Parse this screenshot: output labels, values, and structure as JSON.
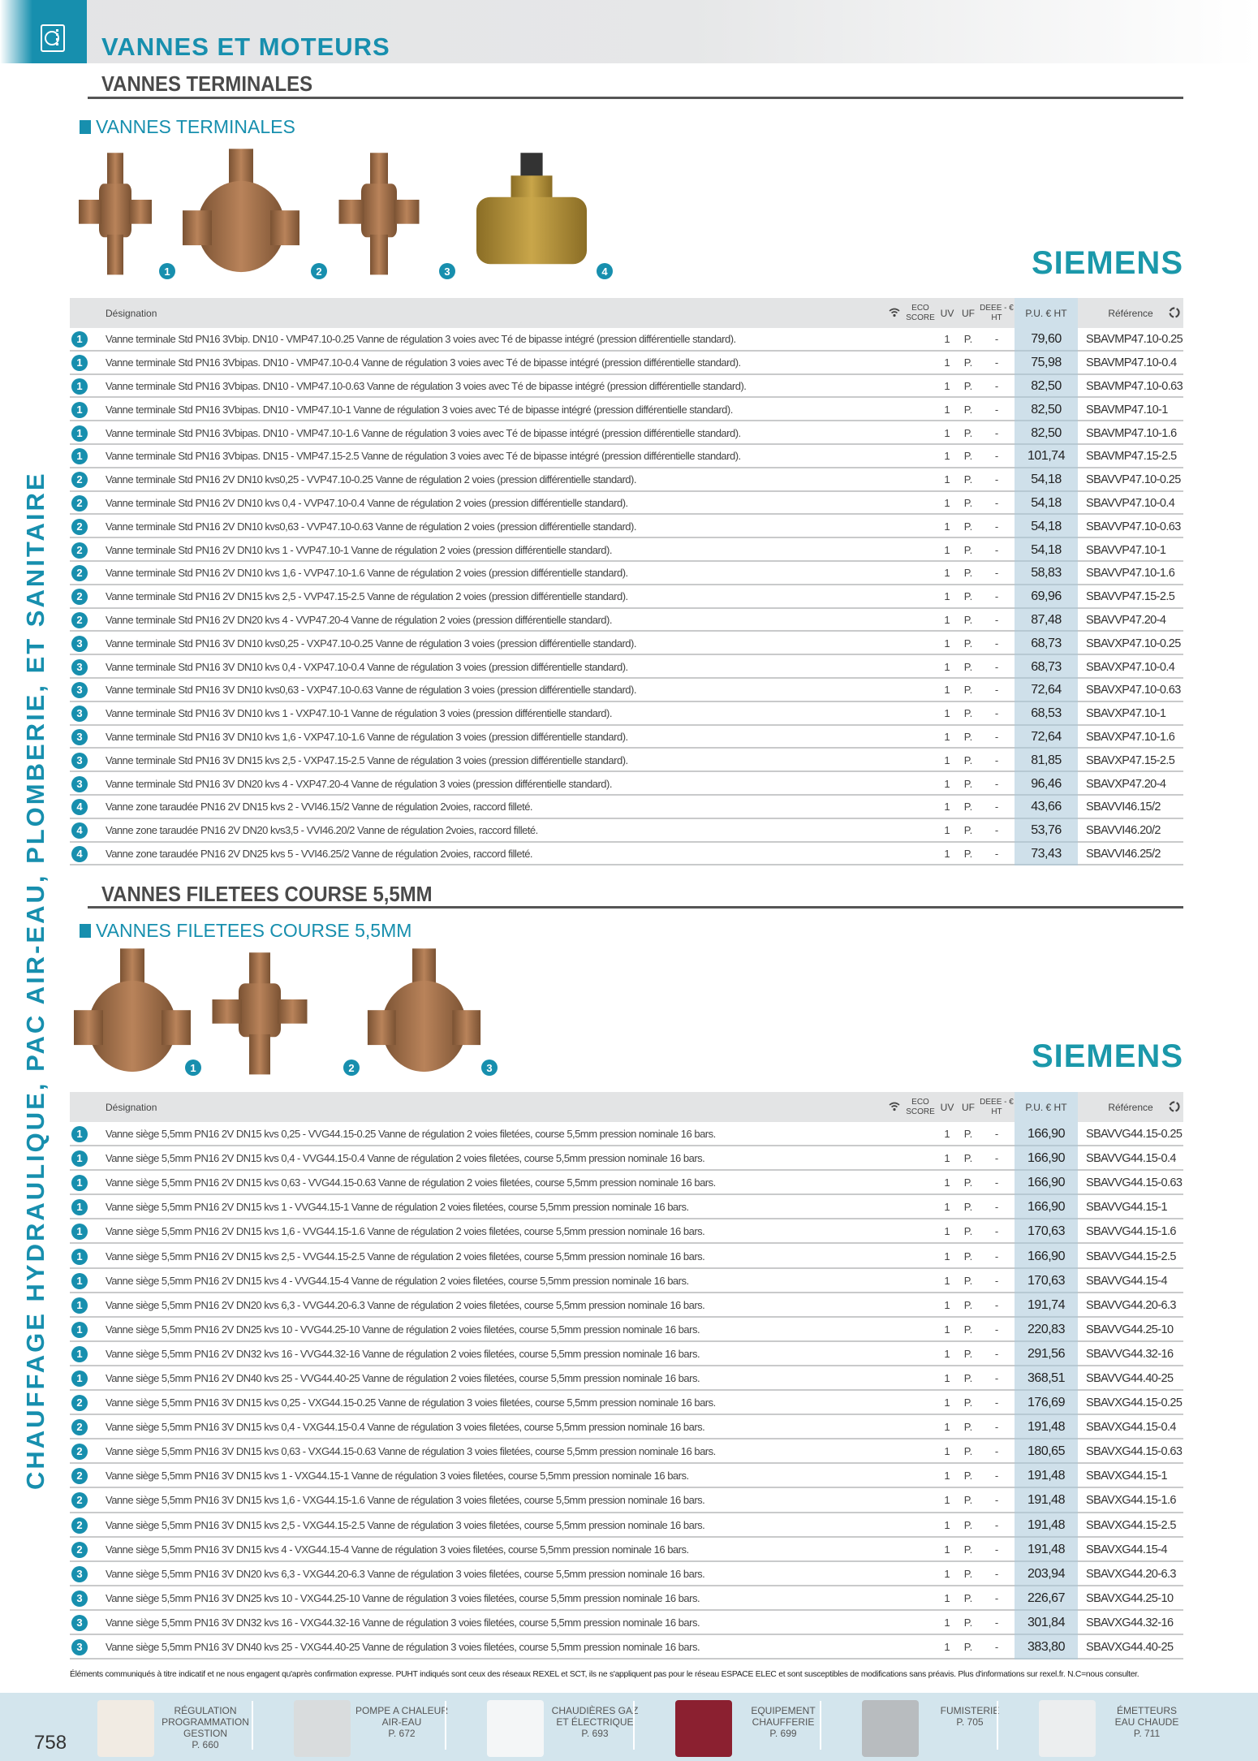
{
  "header": {
    "title": "VANNES ET MOTEURS",
    "icon": "heat-pump-icon"
  },
  "sidebar": {
    "text": "CHAUFFAGE HYDRAULIQUE, PAC AIR-EAU, PLOMBERIE, ET SANITAIRE"
  },
  "brand": "SIEMENS",
  "colors": {
    "accent": "#178fae",
    "price_column": "#cfe0ea",
    "footer_band": "#d3e5ed"
  },
  "columns": {
    "designation": "Désignation",
    "eco_score": "ECO SCORE",
    "uv": "UV",
    "uf": "UF",
    "deee": "DEEE - € HT",
    "pu": "P.U. € HT",
    "reference": "Référence",
    "wifi_icon": "wifi-icon",
    "recycle_icon": "recycle-icon"
  },
  "sections": [
    {
      "title": "VANNES TERMINALES",
      "label": "VANNES TERMINALES",
      "product_badges": [
        "1",
        "2",
        "3",
        "4"
      ],
      "rows": [
        [
          "1",
          "Vanne terminale Std PN16 3Vbip. DN10 - VMP47.10-0.25 Vanne de régulation 3 voies avec Té de bipasse intégré (pression différentielle standard).",
          "1",
          "P.",
          "-",
          "79,60",
          "SBAVMP47.10-0.25"
        ],
        [
          "1",
          "Vanne terminale Std PN16 3Vbipas. DN10 - VMP47.10-0.4 Vanne de régulation 3 voies avec Té de bipasse intégré (pression différentielle standard).",
          "1",
          "P.",
          "-",
          "75,98",
          "SBAVMP47.10-0.4"
        ],
        [
          "1",
          "Vanne terminale Std PN16 3Vbipas. DN10 - VMP47.10-0.63 Vanne de régulation 3 voies avec Té de bipasse intégré (pression différentielle standard).",
          "1",
          "P.",
          "-",
          "82,50",
          "SBAVMP47.10-0.63"
        ],
        [
          "1",
          "Vanne terminale Std PN16 3Vbipas. DN10 - VMP47.10-1 Vanne de régulation 3 voies avec Té de bipasse intégré (pression différentielle standard).",
          "1",
          "P.",
          "-",
          "82,50",
          "SBAVMP47.10-1"
        ],
        [
          "1",
          "Vanne terminale Std PN16 3Vbipas. DN10 - VMP47.10-1.6 Vanne de régulation 3 voies avec Té de bipasse intégré (pression différentielle standard).",
          "1",
          "P.",
          "-",
          "82,50",
          "SBAVMP47.10-1.6"
        ],
        [
          "1",
          "Vanne terminale Std PN16 3Vbipas. DN15 - VMP47.15-2.5 Vanne de régulation 3 voies avec Té de bipasse intégré (pression différentielle standard).",
          "1",
          "P.",
          "-",
          "101,74",
          "SBAVMP47.15-2.5"
        ],
        [
          "2",
          "Vanne terminale Std PN16 2V DN10 kvs0,25 - VVP47.10-0.25 Vanne de régulation 2 voies (pression différentielle standard).",
          "1",
          "P.",
          "-",
          "54,18",
          "SBAVVP47.10-0.25"
        ],
        [
          "2",
          "Vanne terminale Std PN16 2V DN10 kvs 0,4 - VVP47.10-0.4 Vanne de régulation 2 voies (pression différentielle standard).",
          "1",
          "P.",
          "-",
          "54,18",
          "SBAVVP47.10-0.4"
        ],
        [
          "2",
          "Vanne terminale Std PN16 2V DN10 kvs0,63 - VVP47.10-0.63 Vanne de régulation 2 voies (pression différentielle standard).",
          "1",
          "P.",
          "-",
          "54,18",
          "SBAVVP47.10-0.63"
        ],
        [
          "2",
          "Vanne terminale Std PN16 2V DN10 kvs 1 - VVP47.10-1 Vanne de régulation 2 voies (pression différentielle standard).",
          "1",
          "P.",
          "-",
          "54,18",
          "SBAVVP47.10-1"
        ],
        [
          "2",
          "Vanne terminale Std PN16 2V DN10 kvs 1,6 - VVP47.10-1.6 Vanne de régulation 2 voies (pression différentielle standard).",
          "1",
          "P.",
          "-",
          "58,83",
          "SBAVVP47.10-1.6"
        ],
        [
          "2",
          "Vanne terminale Std PN16 2V DN15 kvs 2,5 - VVP47.15-2.5 Vanne de régulation 2 voies (pression différentielle standard).",
          "1",
          "P.",
          "-",
          "69,96",
          "SBAVVP47.15-2.5"
        ],
        [
          "2",
          "Vanne terminale Std PN16 2V DN20 kvs 4 - VVP47.20-4 Vanne de régulation 2 voies (pression différentielle standard).",
          "1",
          "P.",
          "-",
          "87,48",
          "SBAVVP47.20-4"
        ],
        [
          "3",
          "Vanne terminale Std PN16 3V DN10 kvs0,25 - VXP47.10-0.25 Vanne de régulation 3 voies (pression différentielle standard).",
          "1",
          "P.",
          "-",
          "68,73",
          "SBAVXP47.10-0.25"
        ],
        [
          "3",
          "Vanne terminale Std PN16 3V DN10 kvs 0,4 - VXP47.10-0.4 Vanne de régulation 3 voies (pression différentielle standard).",
          "1",
          "P.",
          "-",
          "68,73",
          "SBAVXP47.10-0.4"
        ],
        [
          "3",
          "Vanne terminale Std PN16 3V DN10 kvs0,63 - VXP47.10-0.63 Vanne de régulation 3 voies (pression différentielle standard).",
          "1",
          "P.",
          "-",
          "72,64",
          "SBAVXP47.10-0.63"
        ],
        [
          "3",
          "Vanne terminale Std PN16 3V DN10 kvs 1 - VXP47.10-1 Vanne de régulation 3 voies (pression différentielle standard).",
          "1",
          "P.",
          "-",
          "68,53",
          "SBAVXP47.10-1"
        ],
        [
          "3",
          "Vanne terminale Std PN16 3V DN10 kvs 1,6 - VXP47.10-1.6 Vanne de régulation 3 voies (pression différentielle standard).",
          "1",
          "P.",
          "-",
          "72,64",
          "SBAVXP47.10-1.6"
        ],
        [
          "3",
          "Vanne terminale Std PN16 3V DN15 kvs 2,5 - VXP47.15-2.5 Vanne de régulation 3 voies (pression différentielle standard).",
          "1",
          "P.",
          "-",
          "81,85",
          "SBAVXP47.15-2.5"
        ],
        [
          "3",
          "Vanne terminale Std PN16 3V DN20 kvs 4 - VXP47.20-4 Vanne de régulation 3 voies (pression différentielle standard).",
          "1",
          "P.",
          "-",
          "96,46",
          "SBAVXP47.20-4"
        ],
        [
          "4",
          "Vanne zone taraudée PN16 2V DN15 kvs 2 - VVI46.15/2 Vanne de régulation 2voies, raccord filleté.",
          "1",
          "P.",
          "-",
          "43,66",
          "SBAVVI46.15/2"
        ],
        [
          "4",
          "Vanne zone taraudée PN16 2V DN20 kvs3,5 - VVI46.20/2 Vanne de régulation 2voies, raccord filleté.",
          "1",
          "P.",
          "-",
          "53,76",
          "SBAVVI46.20/2"
        ],
        [
          "4",
          "Vanne zone taraudée PN16 2V DN25 kvs 5 - VVI46.25/2 Vanne de régulation 2voies, raccord filleté.",
          "1",
          "P.",
          "-",
          "73,43",
          "SBAVVI46.25/2"
        ]
      ]
    },
    {
      "title": "VANNES FILETEES COURSE 5,5MM",
      "label": "VANNES FILETEES COURSE 5,5MM",
      "product_badges": [
        "1",
        "2",
        "3"
      ],
      "rows": [
        [
          "1",
          "Vanne siège 5,5mm PN16 2V DN15 kvs 0,25 - VVG44.15-0.25 Vanne de régulation 2 voies filetées, course 5,5mm pression nominale 16 bars.",
          "1",
          "P.",
          "-",
          "166,90",
          "SBAVVG44.15-0.25"
        ],
        [
          "1",
          "Vanne siège 5,5mm PN16 2V DN15 kvs 0,4 - VVG44.15-0.4 Vanne de régulation 2 voies filetées, course 5,5mm pression nominale 16 bars.",
          "1",
          "P.",
          "-",
          "166,90",
          "SBAVVG44.15-0.4"
        ],
        [
          "1",
          "Vanne siège 5,5mm PN16 2V DN15 kvs 0,63 - VVG44.15-0.63 Vanne de régulation 2 voies filetées, course 5,5mm pression nominale 16 bars.",
          "1",
          "P.",
          "-",
          "166,90",
          "SBAVVG44.15-0.63"
        ],
        [
          "1",
          "Vanne siège 5,5mm PN16 2V DN15 kvs 1 - VVG44.15-1 Vanne de régulation 2 voies filetées, course 5,5mm pression nominale 16 bars.",
          "1",
          "P.",
          "-",
          "166,90",
          "SBAVVG44.15-1"
        ],
        [
          "1",
          "Vanne siège 5,5mm PN16 2V DN15 kvs 1,6 - VVG44.15-1.6 Vanne de régulation 2 voies filetées, course 5,5mm pression nominale 16 bars.",
          "1",
          "P.",
          "-",
          "170,63",
          "SBAVVG44.15-1.6"
        ],
        [
          "1",
          "Vanne siège 5,5mm PN16 2V DN15 kvs 2,5 - VVG44.15-2.5 Vanne de régulation 2 voies filetées, course 5,5mm pression nominale 16 bars.",
          "1",
          "P.",
          "-",
          "166,90",
          "SBAVVG44.15-2.5"
        ],
        [
          "1",
          "Vanne siège 5,5mm PN16 2V DN15 kvs 4 - VVG44.15-4 Vanne de régulation 2 voies filetées, course 5,5mm pression nominale 16 bars.",
          "1",
          "P.",
          "-",
          "170,63",
          "SBAVVG44.15-4"
        ],
        [
          "1",
          "Vanne siège 5,5mm PN16 2V DN20 kvs 6,3 - VVG44.20-6.3 Vanne de régulation 2 voies filetées, course 5,5mm pression nominale 16 bars.",
          "1",
          "P.",
          "-",
          "191,74",
          "SBAVVG44.20-6.3"
        ],
        [
          "1",
          "Vanne siège 5,5mm PN16 2V DN25 kvs 10 - VVG44.25-10 Vanne de régulation 2 voies filetées, course 5,5mm pression nominale 16 bars.",
          "1",
          "P.",
          "-",
          "220,83",
          "SBAVVG44.25-10"
        ],
        [
          "1",
          "Vanne siège 5,5mm PN16 2V DN32 kvs 16 - VVG44.32-16 Vanne de régulation 2 voies filetées, course 5,5mm pression nominale 16 bars.",
          "1",
          "P.",
          "-",
          "291,56",
          "SBAVVG44.32-16"
        ],
        [
          "1",
          "Vanne siège 5,5mm PN16 2V DN40 kvs 25 - VVG44.40-25 Vanne de régulation 2 voies filetées, course 5,5mm pression nominale 16 bars.",
          "1",
          "P.",
          "-",
          "368,51",
          "SBAVVG44.40-25"
        ],
        [
          "2",
          "Vanne siège 5,5mm PN16 3V DN15 kvs 0,25 - VXG44.15-0.25 Vanne de régulation 3 voies filetées, course 5,5mm pression nominale 16 bars.",
          "1",
          "P.",
          "-",
          "176,69",
          "SBAVXG44.15-0.25"
        ],
        [
          "2",
          "Vanne siège 5,5mm PN16 3V DN15 kvs 0,4 - VXG44.15-0.4 Vanne de régulation 3 voies filetées, course 5,5mm pression nominale 16 bars.",
          "1",
          "P.",
          "-",
          "191,48",
          "SBAVXG44.15-0.4"
        ],
        [
          "2",
          "Vanne siège 5,5mm PN16 3V DN15 kvs 0,63 - VXG44.15-0.63 Vanne de régulation 3 voies filetées, course 5,5mm pression nominale 16 bars.",
          "1",
          "P.",
          "-",
          "180,65",
          "SBAVXG44.15-0.63"
        ],
        [
          "2",
          "Vanne siège 5,5mm PN16 3V DN15 kvs 1 - VXG44.15-1 Vanne de régulation 3 voies filetées, course 5,5mm pression nominale 16 bars.",
          "1",
          "P.",
          "-",
          "191,48",
          "SBAVXG44.15-1"
        ],
        [
          "2",
          "Vanne siège 5,5mm PN16 3V DN15 kvs 1,6 - VXG44.15-1.6 Vanne de régulation 3 voies filetées, course 5,5mm pression nominale 16 bars.",
          "1",
          "P.",
          "-",
          "191,48",
          "SBAVXG44.15-1.6"
        ],
        [
          "2",
          "Vanne siège 5,5mm PN16 3V DN15 kvs 2,5 - VXG44.15-2.5 Vanne de régulation 3 voies filetées, course 5,5mm pression nominale 16 bars.",
          "1",
          "P.",
          "-",
          "191,48",
          "SBAVXG44.15-2.5"
        ],
        [
          "2",
          "Vanne siège 5,5mm PN16 3V DN15 kvs 4 - VXG44.15-4 Vanne de régulation 3 voies filetées, course 5,5mm pression nominale 16 bars.",
          "1",
          "P.",
          "-",
          "191,48",
          "SBAVXG44.15-4"
        ],
        [
          "3",
          "Vanne siège 5,5mm PN16 3V DN20 kvs 6,3 - VXG44.20-6.3 Vanne de régulation 3 voies filetées, course 5,5mm pression nominale 16 bars.",
          "1",
          "P.",
          "-",
          "203,94",
          "SBAVXG44.20-6.3"
        ],
        [
          "3",
          "Vanne siège 5,5mm PN16 3V DN25 kvs 10 - VXG44.25-10 Vanne de régulation 3 voies filetées, course 5,5mm pression nominale 16 bars.",
          "1",
          "P.",
          "-",
          "226,67",
          "SBAVXG44.25-10"
        ],
        [
          "3",
          "Vanne siège 5,5mm PN16 3V DN32 kvs 16 - VXG44.32-16 Vanne de régulation 3 voies filetées, course 5,5mm pression nominale 16 bars.",
          "1",
          "P.",
          "-",
          "301,84",
          "SBAVXG44.32-16"
        ],
        [
          "3",
          "Vanne siège 5,5mm PN16 3V DN40 kvs 25 - VXG44.40-25 Vanne de régulation 3 voies filetées, course 5,5mm pression nominale 16 bars.",
          "1",
          "P.",
          "-",
          "383,80",
          "SBAVXG44.40-25"
        ]
      ]
    }
  ],
  "note": "Éléments communiqués à titre indicatif et ne nous engagent qu'après confirmation expresse. PUHT indiqués sont ceux des réseaux REXEL et SCT, ils ne s'appliquent pas pour le réseau ESPACE ELEC et sont susceptibles de modifications sans préavis. Plus d'informations sur rexel.fr. N.C=nous consulter.",
  "footer": {
    "page_number": "758",
    "items": [
      {
        "label": [
          "RÉGULATION",
          "PROGRAMMATION",
          "GESTION"
        ],
        "page": "P. 660"
      },
      {
        "label": [
          "POMPE A CHALEUR",
          "AIR-EAU"
        ],
        "page": "P. 672"
      },
      {
        "label": [
          "CHAUDIÈRES GAZ",
          "ET ÉLECTRIQUE"
        ],
        "page": "P. 693"
      },
      {
        "label": [
          "EQUIPEMENT",
          "CHAUFFERIE"
        ],
        "page": "P. 699"
      },
      {
        "label": [
          "FUMISTERIE"
        ],
        "page": "P. 705"
      },
      {
        "label": [
          "ÉMETTEURS",
          "EAU CHAUDE"
        ],
        "page": "P. 711"
      }
    ]
  }
}
